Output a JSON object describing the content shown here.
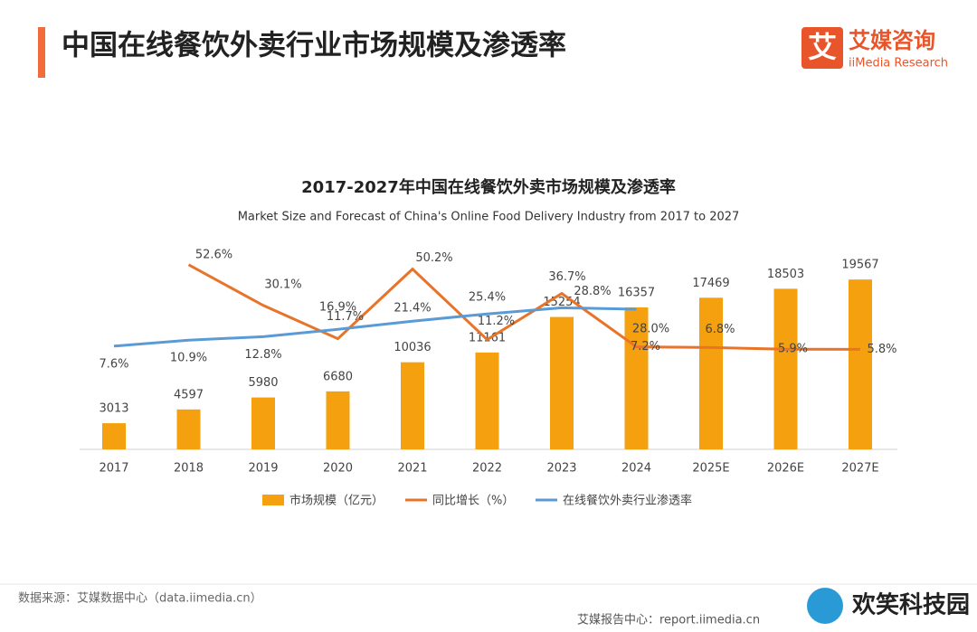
{
  "header": {
    "title": "中国在线餐饮外卖行业市场规模及渗透率",
    "logo_mark": "艾",
    "logo_name": "艾媒咨询",
    "logo_sub": "iiMedia Research"
  },
  "chart_data": {
    "type": "bar",
    "title": "2017-2027年中国在线餐饮外卖市场规模及渗透率",
    "subtitle": "Market Size and Forecast of China's Online Food Delivery Industry from 2017 to 2027",
    "categories": [
      "2017",
      "2018",
      "2019",
      "2020",
      "2021",
      "2022",
      "2023",
      "2024",
      "2025E",
      "2026E",
      "2027E"
    ],
    "series": [
      {
        "name": "市场规模（亿元）",
        "type": "bar",
        "color": "#f5a00f",
        "values": [
          3013,
          4597,
          5980,
          6680,
          10036,
          11161,
          15254,
          16357,
          17469,
          18503,
          19567
        ]
      },
      {
        "name": "同比增长（%）",
        "type": "line",
        "color": "#e8742a",
        "values": [
          null,
          52.6,
          30.1,
          11.7,
          50.2,
          11.2,
          36.7,
          7.2,
          6.8,
          5.9,
          5.8
        ],
        "value_labels": [
          null,
          "52.6%",
          "30.1%",
          "11.7%",
          "50.2%",
          "11.2%",
          "36.7%",
          "7.2%",
          "6.8%",
          "5.9%",
          "5.8%"
        ]
      },
      {
        "name": "在线餐饮外卖行业渗透率",
        "type": "line",
        "color": "#5b9bd5",
        "values": [
          7.6,
          10.9,
          12.8,
          16.9,
          21.4,
          25.4,
          28.8,
          28.0,
          null,
          null,
          null
        ],
        "value_labels": [
          "7.6%",
          "10.9%",
          "12.8%",
          "16.9%",
          "21.4%",
          "25.4%",
          "28.8%",
          "28.0%",
          null,
          null,
          null
        ]
      }
    ]
  },
  "footer": {
    "source": "数据来源：艾媒数据中心（data.iimedia.cn）",
    "report": "艾媒报告中心：report.iimedia.cn"
  },
  "watermark": "欢笑科技园"
}
